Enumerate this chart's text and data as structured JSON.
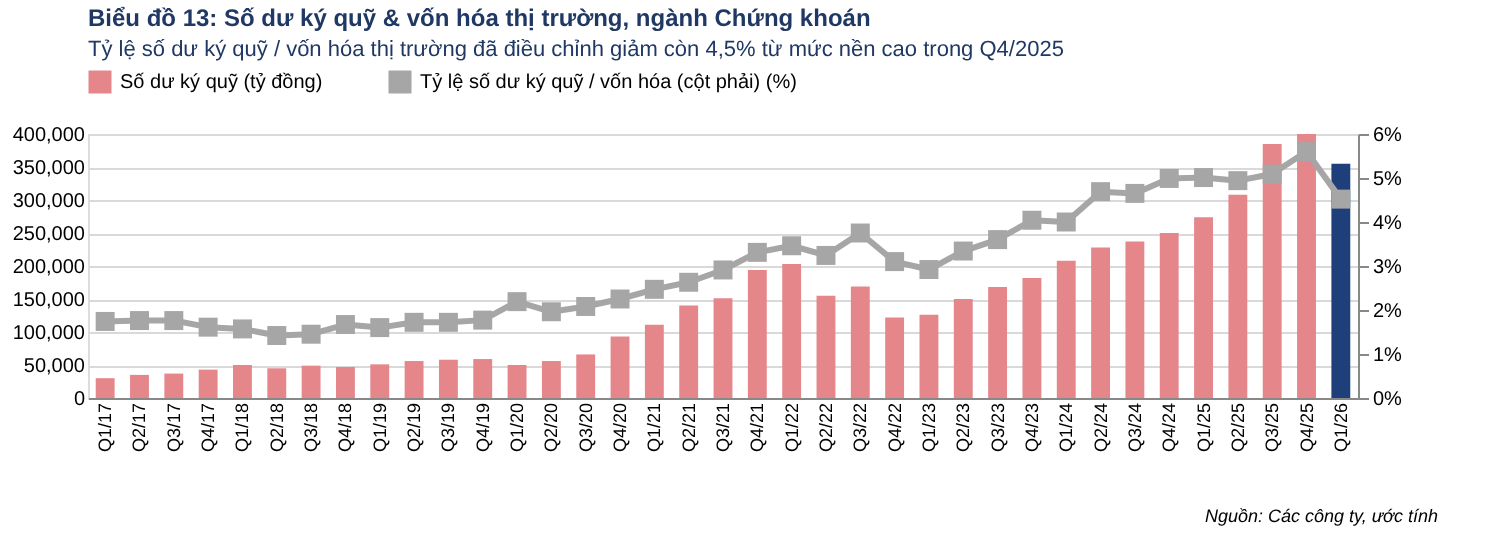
{
  "chart_data": {
    "type": "bar",
    "title": "Biểu đồ 13: Số dư ký quỹ & vốn hóa thị trường, ngành Chứng khoán",
    "subtitle": "Tỷ lệ số dư ký quỹ / vốn hóa thị trường đã điều chỉnh giảm còn 4,5% từ mức nền cao trong Q4/2025",
    "categories": [
      "Q1/17",
      "Q2/17",
      "Q3/17",
      "Q4/17",
      "Q1/18",
      "Q2/18",
      "Q3/18",
      "Q4/18",
      "Q1/19",
      "Q2/19",
      "Q3/19",
      "Q4/19",
      "Q1/20",
      "Q2/20",
      "Q3/20",
      "Q4/20",
      "Q1/21",
      "Q2/21",
      "Q3/21",
      "Q4/21",
      "Q1/22",
      "Q2/22",
      "Q3/22",
      "Q4/22",
      "Q1/23",
      "Q2/23",
      "Q3/23",
      "Q4/23",
      "Q1/24",
      "Q2/24",
      "Q3/24",
      "Q4/24",
      "Q1/25",
      "Q2/25",
      "Q3/25",
      "Q4/25",
      "Q1/26"
    ],
    "series": [
      {
        "name": "Số dư ký quỹ (tỷ đồng)",
        "color": "#e5868b",
        "colors": [
          "#e5868b",
          "#e5868b",
          "#e5868b",
          "#e5868b",
          "#e5868b",
          "#e5868b",
          "#e5868b",
          "#e5868b",
          "#e5868b",
          "#e5868b",
          "#e5868b",
          "#e5868b",
          "#e5868b",
          "#e5868b",
          "#e5868b",
          "#e5868b",
          "#e5868b",
          "#e5868b",
          "#e5868b",
          "#e5868b",
          "#e5868b",
          "#e5868b",
          "#e5868b",
          "#e5868b",
          "#e5868b",
          "#e5868b",
          "#e5868b",
          "#e5868b",
          "#e5868b",
          "#e5868b",
          "#e5868b",
          "#e5868b",
          "#e5868b",
          "#e5868b",
          "#e5868b",
          "#e5868b",
          "#1f3f7a"
        ],
        "values": [
          30000,
          35000,
          37000,
          43000,
          50000,
          45000,
          49000,
          47000,
          51000,
          56000,
          58000,
          59000,
          50000,
          56000,
          66000,
          93000,
          111000,
          140000,
          151000,
          194000,
          203000,
          155000,
          169000,
          122000,
          126000,
          150000,
          168000,
          182000,
          208000,
          228000,
          237000,
          250000,
          274000,
          308000,
          385000,
          400000,
          355000
        ]
      },
      {
        "name": "Tỷ lệ số dư ký quỹ / vốn hóa (cột phải) (%)",
        "type": "line",
        "axis": "y2",
        "color": "#a6a6a6",
        "marker": "square",
        "values": [
          1.74,
          1.76,
          1.76,
          1.61,
          1.57,
          1.42,
          1.45,
          1.67,
          1.6,
          1.72,
          1.72,
          1.77,
          2.19,
          1.96,
          2.08,
          2.25,
          2.47,
          2.63,
          2.91,
          3.31,
          3.46,
          3.24,
          3.75,
          3.1,
          2.92,
          3.34,
          3.6,
          4.04,
          4.0,
          4.69,
          4.65,
          4.99,
          5.01,
          4.94,
          5.09,
          5.6,
          4.52
        ]
      }
    ],
    "ylim": [
      0,
      400000
    ],
    "yticks": [
      0,
      {
        "value": 50000,
        "label": "50,000"
      },
      {
        "value": 100000,
        "label": "100,000"
      },
      {
        "value": 150000,
        "label": "150,000"
      },
      {
        "value": 200000,
        "label": "200,000"
      },
      {
        "value": 250000,
        "label": "250,000"
      },
      {
        "value": 300000,
        "label": "300,000"
      },
      {
        "value": 350000,
        "label": "350,000"
      },
      {
        "value": 400000,
        "label": "400,000"
      }
    ],
    "y2lim": [
      0,
      6
    ],
    "y2ticks": [
      {
        "value": 0,
        "label": "0%"
      },
      {
        "value": 1,
        "label": "1%"
      },
      {
        "value": 2,
        "label": "2%"
      },
      {
        "value": 3,
        "label": "3%"
      },
      {
        "value": 4,
        "label": "4%"
      },
      {
        "value": 5,
        "label": "5%"
      },
      {
        "value": 6,
        "label": "6%"
      }
    ],
    "grid": "y",
    "legend": "top",
    "annotations": [
      "Nguồn: Các công ty, ước tính"
    ]
  }
}
